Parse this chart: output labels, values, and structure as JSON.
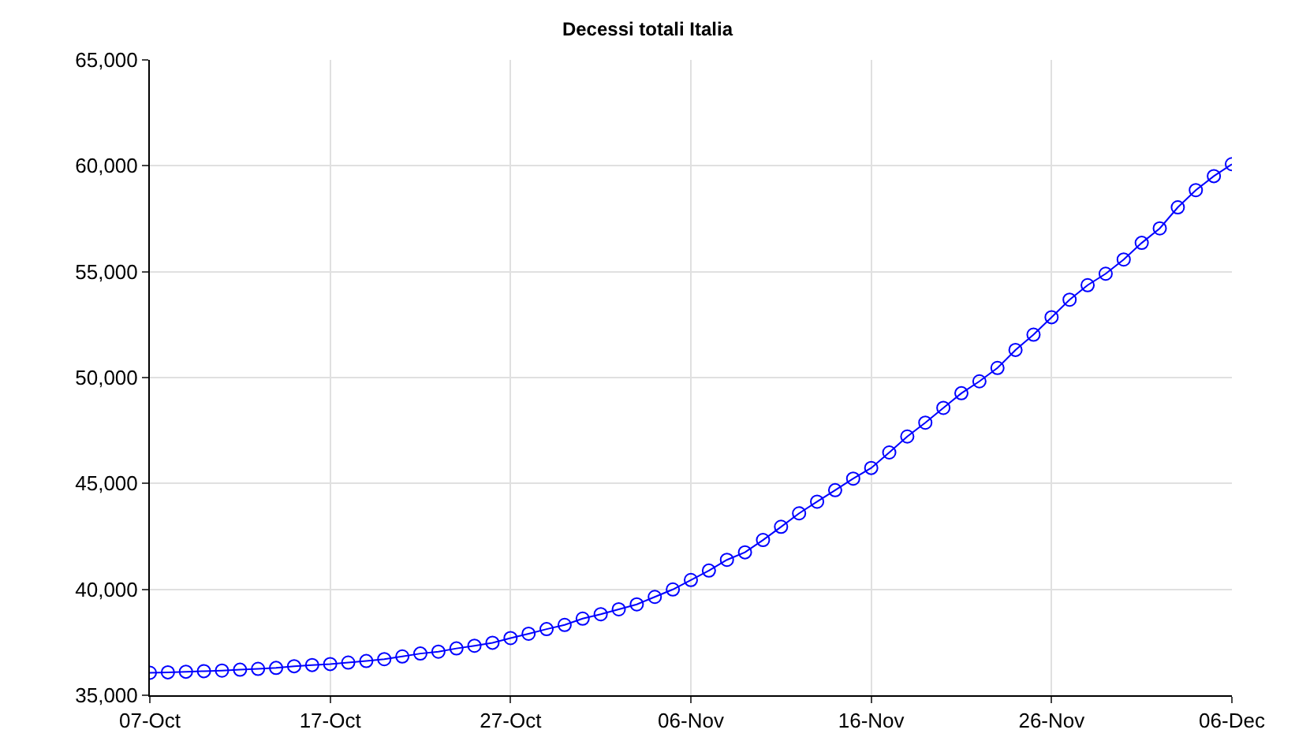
{
  "chart_data": {
    "type": "line",
    "title": "Decessi totali Italia",
    "x": [
      "--10-07",
      "--10-08",
      "--10-09",
      "--10-10",
      "--10-11",
      "--10-12",
      "--10-13",
      "--10-14",
      "--10-15",
      "--10-16",
      "--10-17",
      "--10-18",
      "--10-19",
      "--10-20",
      "--10-21",
      "--10-22",
      "--10-23",
      "--10-24",
      "--10-25",
      "--10-26",
      "--10-27",
      "--10-28",
      "--10-29",
      "--10-30",
      "--10-31",
      "--11-01",
      "--11-02",
      "--11-03",
      "--11-04",
      "--11-05",
      "--11-06",
      "--11-07",
      "--11-08",
      "--11-09",
      "--11-10",
      "--11-11",
      "--11-12",
      "--11-13",
      "--11-14",
      "--11-15",
      "--11-16",
      "--11-17",
      "--11-18",
      "--11-19",
      "--11-20",
      "--11-21",
      "--11-22",
      "--11-23",
      "--11-24",
      "--11-25",
      "--11-26",
      "--11-27",
      "--11-28",
      "--11-29",
      "--11-30",
      "--12-01",
      "--12-02",
      "--12-03",
      "--12-04",
      "--12-05",
      "--12-06"
    ],
    "series": [
      {
        "color": "#0000ff",
        "values": [
          36061,
          36083,
          36111,
          36140,
          36166,
          36205,
          36246,
          36289,
          36372,
          36427,
          36474,
          36543,
          36616,
          36705,
          36832,
          36968,
          37059,
          37210,
          37338,
          37479,
          37700,
          37905,
          38122,
          38321,
          38618,
          38826,
          39059,
          39292,
          39644,
          39996,
          40441,
          40887,
          41394,
          41750,
          42330,
          42953,
          43589,
          44139,
          44683,
          45229,
          45733,
          46464,
          47217,
          47870,
          48569,
          49261,
          49823,
          50453,
          51306,
          52028,
          52850,
          53677,
          54363,
          54904,
          55576,
          56361,
          57045,
          58038,
          58852,
          59514,
          60078
        ]
      }
    ],
    "xlim": [
      "--10-07",
      "--12-06"
    ],
    "xticks": [
      {
        "value": "--10-07",
        "label": "07-Oct"
      },
      {
        "value": "--10-17",
        "label": "17-Oct"
      },
      {
        "value": "--10-27",
        "label": "27-Oct"
      },
      {
        "value": "--11-06",
        "label": "06-Nov"
      },
      {
        "value": "--11-16",
        "label": "16-Nov"
      },
      {
        "value": "--11-26",
        "label": "26-Nov"
      },
      {
        "value": "--12-06",
        "label": "06-Dec"
      }
    ],
    "ylim": [
      35000,
      65000
    ],
    "yticks": [
      {
        "value": 35000,
        "label": "35,000"
      },
      {
        "value": 40000,
        "label": "40,000"
      },
      {
        "value": 45000,
        "label": "45,000"
      },
      {
        "value": 50000,
        "label": "50,000"
      },
      {
        "value": 55000,
        "label": "55,000"
      },
      {
        "value": 60000,
        "label": "60,000"
      },
      {
        "value": 65000,
        "label": "65,000"
      }
    ],
    "grid": true,
    "marker": "circle",
    "line_style": "solid"
  }
}
